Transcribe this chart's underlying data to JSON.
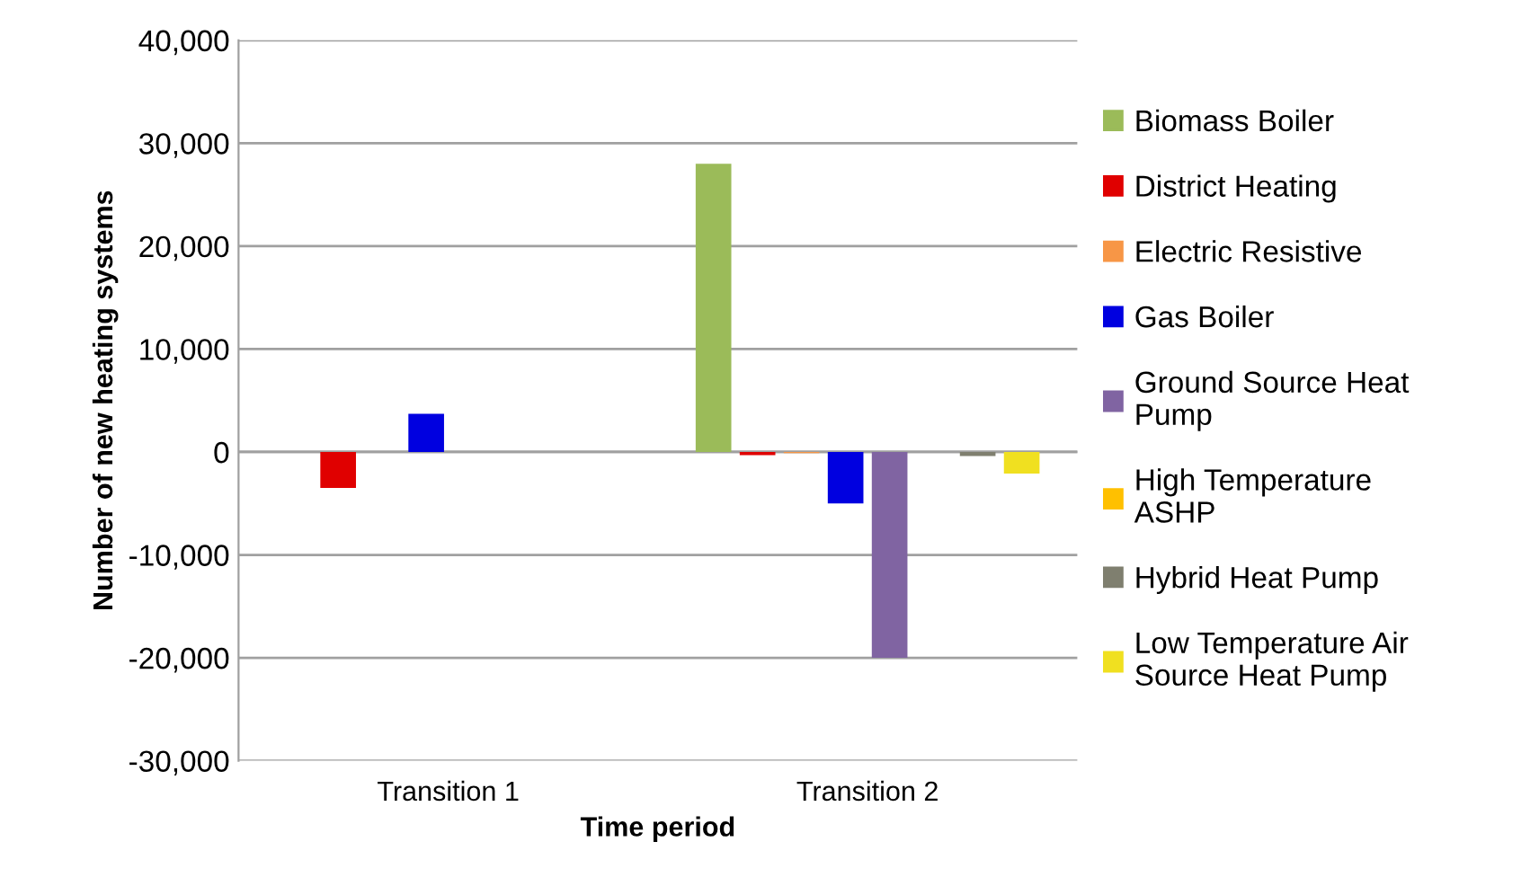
{
  "chart_data": {
    "type": "bar",
    "xlabel": "Time period",
    "ylabel": "Number of new heating systems",
    "categories": [
      "Transition 1",
      "Transition 2"
    ],
    "series": [
      {
        "name": "Biomass Boiler",
        "color": "#9bbb59",
        "values": [
          0,
          28000
        ]
      },
      {
        "name": "District Heating",
        "color": "#e00000",
        "values": [
          -3500,
          -300
        ]
      },
      {
        "name": "Electric Resistive",
        "color": "#f79646",
        "values": [
          0,
          -100
        ]
      },
      {
        "name": "Gas Boiler",
        "color": "#0000e0",
        "values": [
          3700,
          -5000
        ]
      },
      {
        "name": "Ground Source Heat\nPump",
        "color": "#8064a2",
        "values": [
          0,
          -20000
        ]
      },
      {
        "name": "High Temperature\nASHP",
        "color": "#ffc000",
        "values": [
          0,
          0
        ]
      },
      {
        "name": "Hybrid Heat Pump",
        "color": "#7f7f6f",
        "values": [
          0,
          -400
        ]
      },
      {
        "name": "Low Temperature Air\nSource Heat Pump",
        "color": "#f0e020",
        "values": [
          0,
          -2100
        ]
      }
    ],
    "ylim": [
      -30000,
      40000
    ],
    "yticks": [
      {
        "value": -30000,
        "label": "-30,000"
      },
      {
        "value": -20000,
        "label": "-20,000"
      },
      {
        "value": -10000,
        "label": "-10,000"
      },
      0,
      {
        "value": 10000,
        "label": "10,000"
      },
      {
        "value": 20000,
        "label": "20,000"
      },
      {
        "value": 30000,
        "label": "30,000"
      },
      {
        "value": 40000,
        "label": "40,000"
      }
    ],
    "grid": "y",
    "legend": "right"
  }
}
